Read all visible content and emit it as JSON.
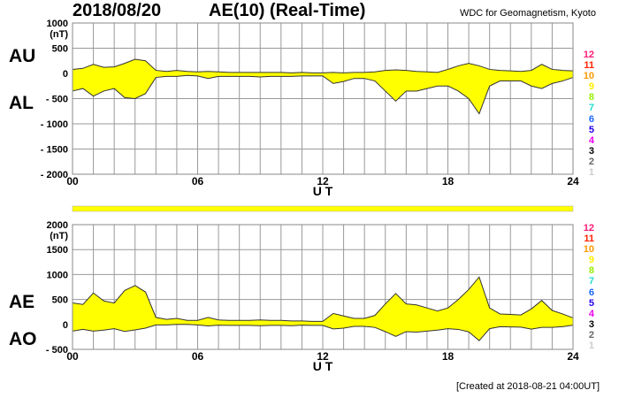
{
  "header": {
    "date": "2018/08/20",
    "title": "AE(10) (Real-Time)",
    "source": "WDC for Geomagnetism, Kyoto"
  },
  "footer": {
    "created": "[Created at 2018-08-21 04:00UT]"
  },
  "station_counts": [
    {
      "label": "12",
      "color": "#ff1a75"
    },
    {
      "label": "11",
      "color": "#ff2200"
    },
    {
      "label": "10",
      "color": "#ff9900"
    },
    {
      "label": "9",
      "color": "#ffee00"
    },
    {
      "label": "8",
      "color": "#99ee00"
    },
    {
      "label": "7",
      "color": "#22ddcc"
    },
    {
      "label": "6",
      "color": "#1a66ff"
    },
    {
      "label": "5",
      "color": "#2200ee"
    },
    {
      "label": "4",
      "color": "#ee00ee"
    },
    {
      "label": "3",
      "color": "#000000"
    },
    {
      "label": "2",
      "color": "#666666"
    },
    {
      "label": "1",
      "color": "#cccccc"
    }
  ],
  "colors": {
    "fill": "#ffff00",
    "line": "#333333",
    "grid": "#999999"
  },
  "chart_data": [
    {
      "type": "area",
      "name": "AU/AL",
      "upper_label": "AU",
      "lower_label": "AL",
      "unit": "(nT)",
      "xlabel": "U T",
      "xlim": [
        0,
        24
      ],
      "ylim": [
        -2000,
        1000
      ],
      "yticks": [
        1000,
        500,
        0,
        -500,
        -1000,
        -1500,
        -2000
      ],
      "ytick_labels": [
        "1000",
        "500",
        "0",
        "- 500",
        "- 1000",
        "- 1500",
        "- 2000"
      ],
      "xticks": [
        0,
        6,
        12,
        18,
        24
      ],
      "xtick_labels": [
        "00",
        "06",
        "12",
        "18",
        "24"
      ],
      "grid": true,
      "x": [
        0,
        0.5,
        1,
        1.5,
        2,
        2.5,
        3,
        3.5,
        4,
        4.5,
        5,
        5.5,
        6,
        6.5,
        7,
        7.5,
        8,
        8.5,
        9,
        9.5,
        10,
        10.5,
        11,
        11.5,
        12,
        12.5,
        13,
        13.5,
        14,
        14.5,
        15,
        15.5,
        16,
        16.5,
        17,
        17.5,
        18,
        18.5,
        19,
        19.5,
        20,
        20.5,
        21,
        21.5,
        22,
        22.5,
        23,
        23.5,
        24
      ],
      "upper": [
        80,
        100,
        180,
        120,
        130,
        200,
        280,
        250,
        60,
        40,
        60,
        40,
        30,
        40,
        30,
        20,
        20,
        20,
        20,
        20,
        20,
        10,
        20,
        10,
        10,
        20,
        10,
        20,
        20,
        30,
        60,
        70,
        60,
        40,
        30,
        20,
        80,
        150,
        200,
        150,
        80,
        60,
        50,
        40,
        60,
        180,
        80,
        60,
        50
      ],
      "lower": [
        -350,
        -300,
        -450,
        -350,
        -300,
        -480,
        -500,
        -400,
        -80,
        -60,
        -60,
        -40,
        -50,
        -100,
        -60,
        -60,
        -60,
        -60,
        -70,
        -60,
        -60,
        -60,
        -50,
        -50,
        -50,
        -200,
        -160,
        -100,
        -100,
        -150,
        -350,
        -550,
        -350,
        -350,
        -300,
        -250,
        -250,
        -350,
        -500,
        -800,
        -250,
        -150,
        -150,
        -150,
        -250,
        -300,
        -200,
        -150,
        -80
      ]
    },
    {
      "type": "area",
      "name": "AE/AO",
      "upper_label": "AE",
      "lower_label": "AO",
      "unit": "(nT)",
      "xlabel": "U T",
      "xlim": [
        0,
        24
      ],
      "ylim": [
        -500,
        2000
      ],
      "yticks": [
        2000,
        1500,
        1000,
        500,
        0,
        -500
      ],
      "ytick_labels": [
        "2000",
        "1500",
        "1000",
        "500",
        "0",
        "- 500"
      ],
      "xticks": [
        0,
        6,
        12,
        18,
        24
      ],
      "xtick_labels": [
        "00",
        "06",
        "12",
        "18",
        "24"
      ],
      "grid": true,
      "x": [
        0,
        0.5,
        1,
        1.5,
        2,
        2.5,
        3,
        3.5,
        4,
        4.5,
        5,
        5.5,
        6,
        6.5,
        7,
        7.5,
        8,
        8.5,
        9,
        9.5,
        10,
        10.5,
        11,
        11.5,
        12,
        12.5,
        13,
        13.5,
        14,
        14.5,
        15,
        15.5,
        16,
        16.5,
        17,
        17.5,
        18,
        18.5,
        19,
        19.5,
        20,
        20.5,
        21,
        21.5,
        22,
        22.5,
        23,
        23.5,
        24
      ],
      "upper": [
        430,
        400,
        630,
        470,
        430,
        680,
        780,
        650,
        140,
        100,
        120,
        80,
        80,
        140,
        90,
        80,
        80,
        80,
        90,
        80,
        80,
        70,
        70,
        60,
        60,
        220,
        170,
        120,
        120,
        180,
        410,
        620,
        410,
        390,
        330,
        270,
        330,
        500,
        700,
        950,
        330,
        210,
        200,
        190,
        310,
        480,
        280,
        210,
        130
      ],
      "lower": [
        -135,
        -100,
        -135,
        -115,
        -85,
        -140,
        -110,
        -75,
        -10,
        -10,
        0,
        0,
        -10,
        -30,
        -15,
        -20,
        -20,
        -20,
        -25,
        -20,
        -20,
        -25,
        -15,
        -20,
        -20,
        -90,
        -75,
        -40,
        -40,
        -60,
        -145,
        -240,
        -145,
        -155,
        -135,
        -115,
        -85,
        -100,
        -150,
        -325,
        -85,
        -45,
        -50,
        -55,
        -95,
        -60,
        -60,
        -45,
        -15
      ]
    }
  ]
}
